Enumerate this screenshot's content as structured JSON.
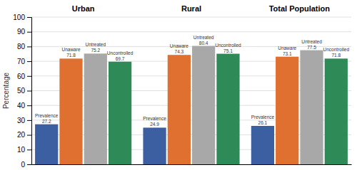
{
  "chart_data": {
    "type": "bar",
    "categories": [
      "Urban",
      "Rural",
      "Total Population"
    ],
    "series": [
      {
        "name": "Prevalence",
        "color": "#3b5fa0",
        "values": [
          27.2,
          24.9,
          26.1
        ]
      },
      {
        "name": "Unaware",
        "color": "#e07030",
        "values": [
          71.8,
          74.3,
          73.1
        ]
      },
      {
        "name": "Untreated",
        "color": "#a8a8a8",
        "values": [
          75.2,
          80.4,
          77.5
        ]
      },
      {
        "name": "Uncontrolled",
        "color": "#2e8b57",
        "values": [
          69.7,
          75.1,
          71.8
        ]
      }
    ],
    "y_label": "Percentage",
    "ylim": [
      0,
      100
    ],
    "yticks": [
      0,
      10,
      20,
      30,
      40,
      50,
      60,
      70,
      80,
      90,
      100
    ],
    "grid": true,
    "data_labels": true
  }
}
